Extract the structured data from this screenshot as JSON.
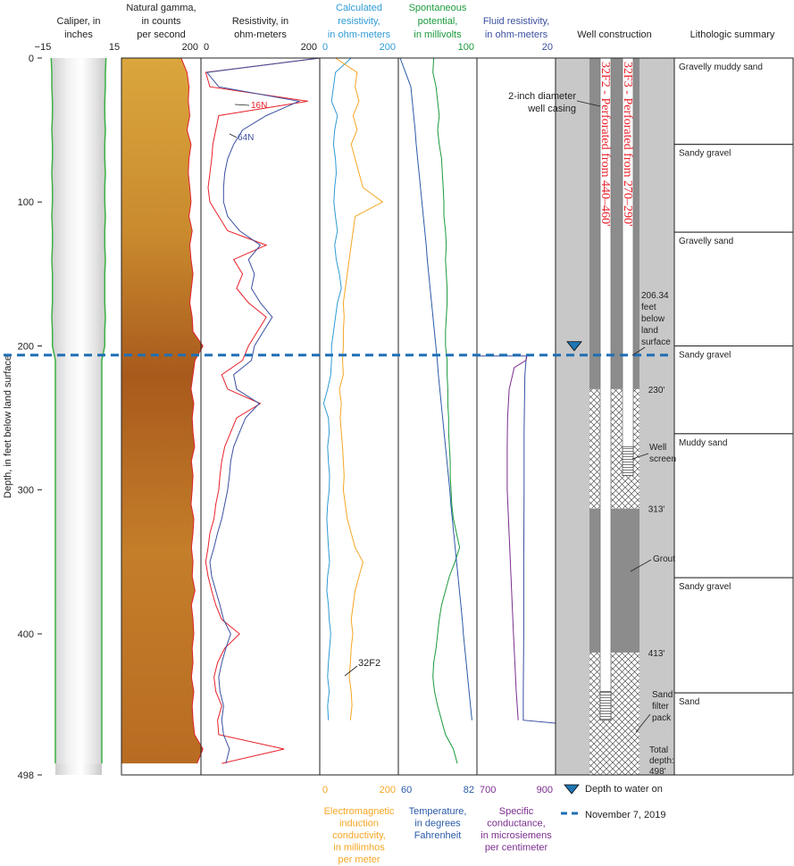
{
  "chart_data": {
    "type": "well_log",
    "y_label": "Depth, in feet below land surface",
    "ylim": [
      0,
      498
    ],
    "yticks": [
      0,
      100,
      200,
      300,
      400,
      498
    ],
    "depth": [
      0,
      10,
      20,
      30,
      40,
      50,
      60,
      70,
      80,
      90,
      100,
      110,
      120,
      130,
      140,
      150,
      160,
      170,
      180,
      190,
      200,
      210,
      220,
      230,
      240,
      250,
      260,
      270,
      280,
      290,
      300,
      310,
      320,
      330,
      340,
      350,
      360,
      370,
      380,
      390,
      400,
      410,
      420,
      430,
      440,
      450,
      460,
      470,
      480,
      490
    ],
    "tracks": [
      {
        "title": [
          "Caliper, in",
          "inches"
        ],
        "color": "#222222",
        "xlim": [
          -15,
          15
        ],
        "xticks": [
          {
            "value": -15,
            "label": "−15"
          },
          15
        ],
        "series": [
          {
            "type": "caliper",
            "color": "#3cb043",
            "values": [
              23,
              22.5,
              22.5,
              22,
              22,
              22.5,
              22,
              22,
              22.5,
              22,
              22,
              22.5,
              22,
              22,
              22.5,
              22,
              22,
              22,
              22.5,
              22,
              22,
              19.5,
              19.5,
              19.5,
              19.5,
              19.5,
              19.5,
              19.5,
              19.5,
              19.5,
              19.5,
              19.5,
              19.5,
              19.5,
              19.5,
              19.5,
              19.5,
              19.5,
              19.5,
              19.5,
              19.5,
              19.5,
              19.5,
              19.5,
              19.5,
              19.5,
              19.5,
              19.5,
              19.5,
              19.5
            ]
          }
        ]
      },
      {
        "title": [
          "Natural gamma,",
          "in counts",
          "per second"
        ],
        "color": "#222222",
        "xlim": [
          0,
          200
        ],
        "xticks": [
          200
        ],
        "series": [
          {
            "type": "fill",
            "color": "#e0202a",
            "values": [
              150,
              165,
              170,
              168,
              172,
              165,
              175,
              170,
              168,
              172,
              175,
              170,
              178,
              172,
              175,
              180,
              176,
              172,
              178,
              180,
              205,
              185,
              180,
              175,
              182,
              178,
              180,
              184,
              176,
              180,
              178,
              175,
              182,
              180,
              176,
              180,
              178,
              185,
              176,
              180,
              182,
              178,
              180,
              176,
              182,
              178,
              180,
              184,
              205,
              190
            ]
          }
        ]
      },
      {
        "title": [
          "Resistivity, in",
          "ohm-meters"
        ],
        "color": "#222222",
        "xlim": [
          0,
          200
        ],
        "xticks": [
          0,
          200
        ],
        "series": [
          {
            "name": "16N",
            "type": "line",
            "color": "#e8202a",
            "values": [
              200,
              8,
              15,
              180,
              30,
              25,
              20,
              18,
              15,
              12,
              15,
              30,
              45,
              110,
              55,
              70,
              60,
              80,
              110,
              95,
              80,
              70,
              35,
              45,
              100,
              60,
              50,
              40,
              35,
              32,
              30,
              25,
              22,
              15,
              12,
              8,
              12,
              18,
              25,
              35,
              65,
              40,
              28,
              22,
              25,
              35,
              28,
              30,
              140,
              35
            ]
          },
          {
            "name": "64N",
            "type": "line",
            "color": "#3b4fa0",
            "values": [
              200,
              10,
              30,
              165,
              110,
              70,
              55,
              45,
              40,
              38,
              38,
              45,
              65,
              100,
              80,
              90,
              85,
              100,
              120,
              105,
              90,
              85,
              55,
              60,
              98,
              75,
              65,
              55,
              50,
              48,
              45,
              40,
              35,
              28,
              22,
              15,
              18,
              25,
              32,
              38,
              50,
              42,
              35,
              30,
              32,
              38,
              35,
              38,
              48,
              42
            ]
          }
        ]
      },
      {
        "title": [
          "Calculated",
          "resistivity,",
          "in ohm-meters"
        ],
        "color": "#2e9bd6",
        "xlim": [
          0,
          200
        ],
        "xticks": [
          0,
          200
        ],
        "annotation": "32F2",
        "bottom": {
          "title": [
            "Electromagnetic",
            "induction",
            "conductivity,",
            "in millimhos",
            "per meter"
          ],
          "color": "#f5a623",
          "xlim": [
            0,
            200
          ],
          "xticks": [
            0,
            200
          ]
        },
        "series": [
          {
            "type": "line",
            "color": "#2e9bd6",
            "values": [
              80,
              40,
              35,
              30,
              45,
              38,
              35,
              40,
              42,
              38,
              36,
              40,
              45,
              38,
              42,
              50,
              55,
              45,
              40,
              35,
              30,
              30,
              28,
              20,
              10,
              22,
              24,
              20,
              22,
              25,
              24,
              20,
              18,
              20,
              22,
              25,
              20,
              18,
              22,
              24,
              28,
              25,
              22,
              20,
              24,
              20,
              22,
              null,
              null,
              null
            ]
          },
          {
            "type": "line",
            "color": "#f5a623",
            "axis": "bottom",
            "values": [
              40,
              95,
              90,
              100,
              85,
              95,
              80,
              90,
              100,
              110,
              160,
              90,
              85,
              80,
              75,
              70,
              65,
              60,
              62,
              60,
              60,
              58,
              60,
              50,
              55,
              52,
              55,
              58,
              60,
              62,
              60,
              65,
              70,
              80,
              90,
              110,
              100,
              90,
              85,
              80,
              84,
              80,
              78,
              75,
              80,
              82,
              78,
              null,
              null,
              null
            ]
          }
        ]
      },
      {
        "title": [
          "Spontaneous",
          "potential,",
          "in millivolts"
        ],
        "color": "#1a9a3c",
        "xlim": [
          0,
          100
        ],
        "xticks": [
          100
        ],
        "bottom": {
          "title": [
            "Temperature,",
            "in degrees",
            "Fahrenheit"
          ],
          "color": "#2a5aa8",
          "xlim": [
            60,
            82
          ],
          "xticks": [
            60,
            82
          ]
        },
        "series": [
          {
            "type": "line",
            "color": "#1a9a3c",
            "values": [
              45,
              44,
              48,
              50,
              52,
              50,
              52,
              55,
              56,
              57,
              58,
              58,
              60,
              61,
              60,
              61,
              62,
              62,
              61,
              60,
              60,
              62,
              62,
              63,
              63,
              64,
              64,
              65,
              66,
              66,
              67,
              68,
              70,
              74,
              78,
              72,
              65,
              60,
              55,
              52,
              50,
              48,
              45,
              44,
              46,
              50,
              55,
              60,
              70,
              75
            ]
          },
          {
            "type": "line",
            "color": "#2a5aa8",
            "axis": "bottom",
            "values": [
              60.5,
              62,
              63.5,
              63.9,
              64.3,
              64.7,
              65.0,
              65.4,
              65.8,
              66.2,
              66.6,
              67.0,
              67.4,
              67.8,
              68.1,
              68.5,
              68.9,
              69.3,
              69.7,
              70.1,
              70.5,
              70.9,
              71.2,
              71.6,
              72.0,
              72.4,
              72.8,
              73.2,
              73.6,
              74.0,
              74.4,
              74.7,
              75.1,
              75.5,
              75.9,
              76.3,
              76.7,
              77.1,
              77.5,
              77.9,
              78.2,
              78.6,
              79.0,
              79.4,
              79.8,
              80.2,
              80.6,
              null,
              null,
              null
            ]
          }
        ]
      },
      {
        "title": [
          "Fluid resistivity,",
          "in ohm-meters"
        ],
        "color": "#3b4fa0",
        "xlim": [
          0,
          20
        ],
        "xticks": [
          20
        ],
        "bottom": {
          "title": [
            "Specific",
            "conductance,",
            "in microsiemens",
            "per centimeter"
          ],
          "color": "#7b2d8e",
          "xlim": [
            700,
            900
          ],
          "xticks": [
            700,
            900
          ]
        },
        "series": [
          {
            "type": "line",
            "color": "#3b4fa0",
            "depth": [
              207,
              207,
              220,
              260,
              300,
              350,
              400,
              440,
              460,
              462
            ],
            "values": [
              0,
              12.6,
              12.2,
              12.0,
              12.0,
              11.9,
              11.9,
              11.8,
              11.8,
              20
            ]
          },
          {
            "type": "line",
            "color": "#7b2d8e",
            "axis": "bottom",
            "depth": [
              207,
              210,
              215,
              230,
              250,
              270,
              300,
              350,
              400,
              440,
              460
            ],
            "values": [
              827,
              825,
              795,
              782,
              778,
              777,
              777,
              785,
              793,
              800,
              805
            ]
          }
        ]
      }
    ],
    "well": {
      "title": "Well construction",
      "boundaries": [
        {
          "value": 230,
          "label": "230'"
        },
        {
          "value": 313,
          "label": "313'"
        },
        {
          "value": 413,
          "label": "413'"
        }
      ],
      "wells": [
        {
          "label": "32F2 - Perforated from 440–460'",
          "screen_top": 440,
          "screen_bottom": 460
        },
        {
          "label": "32F3 - Perforated from 270–290'",
          "screen_top": 270,
          "screen_bottom": 290
        }
      ],
      "casing_label": [
        "2-inch diameter",
        "well casing"
      ],
      "water_label": [
        "206.34",
        "feet",
        "below",
        "land",
        "surface"
      ],
      "screen_label": [
        "Well",
        "screen"
      ],
      "grout_label": [
        "Grout"
      ],
      "filter_label": [
        "Sand",
        "filter",
        "pack"
      ],
      "total_label": [
        "Total",
        "depth:",
        "498'"
      ]
    },
    "lithology": {
      "title": "Lithologic summary",
      "units": [
        {
          "label": "Gravelly muddy sand",
          "top": 0,
          "bottom": 60
        },
        {
          "label": "Sandy gravel",
          "top": 60,
          "bottom": 121
        },
        {
          "label": "Gravelly sand",
          "top": 121,
          "bottom": 200
        },
        {
          "label": "Sandy gravel",
          "top": 200,
          "bottom": 261
        },
        {
          "label": "Muddy sand",
          "top": 261,
          "bottom": 361
        },
        {
          "label": "Sandy gravel",
          "top": 361,
          "bottom": 441
        },
        {
          "label": "Sand",
          "top": 441,
          "bottom": 498
        }
      ]
    },
    "water_level": {
      "value": 206.34,
      "color": "#1f6fb5",
      "legend": [
        "Depth to water on",
        "November 7, 2019"
      ]
    }
  }
}
